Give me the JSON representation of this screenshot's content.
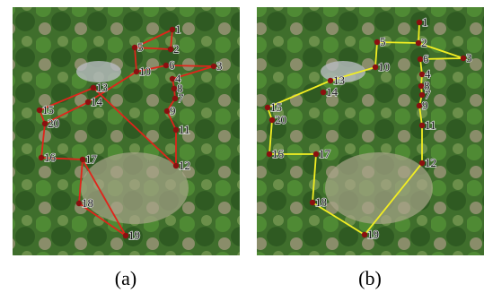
{
  "panels": [
    {
      "caption": "(a)",
      "nodes": [
        "1",
        "2",
        "3",
        "4",
        "5",
        "6",
        "7",
        "8",
        "9",
        "10",
        "11",
        "12",
        "13",
        "14",
        "15",
        "16",
        "17",
        "18",
        "19",
        "20"
      ]
    },
    {
      "caption": "(b)",
      "nodes": [
        "1",
        "2",
        "3",
        "4",
        "5",
        "6",
        "7",
        "8",
        "9",
        "10",
        "11",
        "12",
        "13",
        "14",
        "15",
        "16",
        "17",
        "18",
        "19",
        "20"
      ]
    }
  ]
}
